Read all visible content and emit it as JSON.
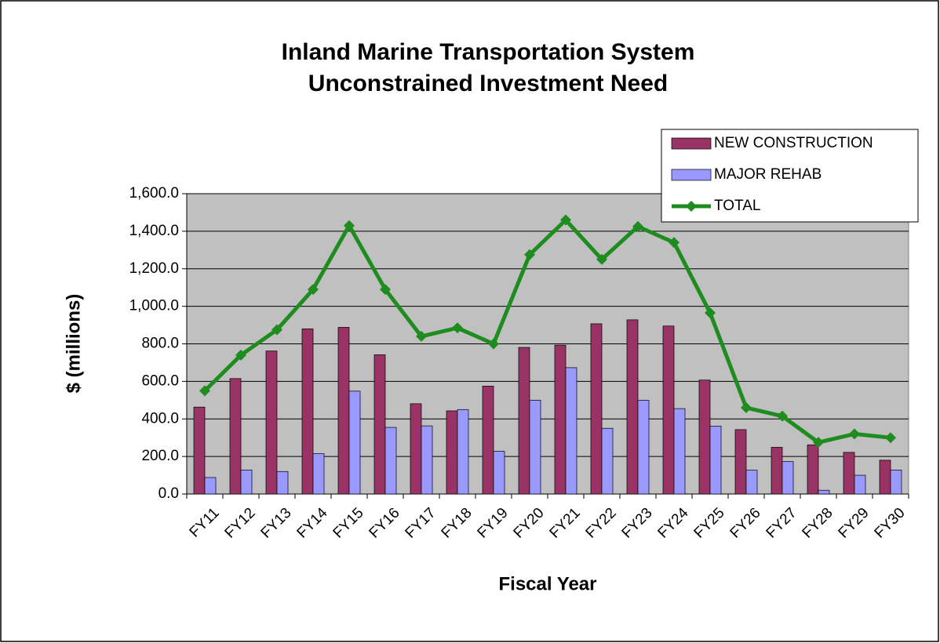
{
  "chart_data": {
    "type": "bar",
    "title": "Inland Marine Transportation System",
    "subtitle": "Unconstrained Investment Need",
    "x_label": "Fiscal Year",
    "y_label": "$ (millions)",
    "categories": [
      "FY11",
      "FY12",
      "FY13",
      "FY14",
      "FY15",
      "FY16",
      "FY17",
      "FY18",
      "FY19",
      "FY20",
      "FY21",
      "FY22",
      "FY23",
      "FY24",
      "FY25",
      "FY26",
      "FY27",
      "FY28",
      "FY29",
      "FY30"
    ],
    "series": [
      {
        "name": "NEW CONSTRUCTION",
        "type": "bar",
        "color": "#993366",
        "values": [
          463,
          615,
          762,
          880,
          888,
          742,
          481,
          443,
          575,
          781,
          793,
          907,
          928,
          895,
          607,
          343,
          249,
          262,
          222,
          180
        ]
      },
      {
        "name": "MAJOR REHAB",
        "type": "bar",
        "color": "#9999ff",
        "values": [
          88,
          128,
          120,
          215,
          548,
          355,
          363,
          450,
          228,
          500,
          673,
          350,
          500,
          455,
          362,
          127,
          173,
          20,
          100,
          128
        ]
      },
      {
        "name": "TOTAL",
        "type": "line",
        "color": "#1e8c1e",
        "values": [
          550,
          740,
          875,
          1090,
          1430,
          1090,
          840,
          885,
          800,
          1275,
          1460,
          1250,
          1425,
          1340,
          965,
          460,
          415,
          275,
          320,
          300
        ]
      }
    ],
    "ylim": [
      0,
      1600
    ],
    "yticks": [
      {
        "value": 0,
        "label": "0.0"
      },
      {
        "value": 200,
        "label": "200.0"
      },
      {
        "value": 400,
        "label": "400.0"
      },
      {
        "value": 600,
        "label": "600.0"
      },
      {
        "value": 800,
        "label": "800.0"
      },
      {
        "value": 1000,
        "label": "1,000.0"
      },
      {
        "value": 1200,
        "label": "1,200.0"
      },
      {
        "value": 1400,
        "label": "1,400.0"
      },
      {
        "value": 1600,
        "label": "1,600.0"
      }
    ],
    "grid": true,
    "legend": "top-right",
    "plot_background": "#c0c0c0"
  }
}
